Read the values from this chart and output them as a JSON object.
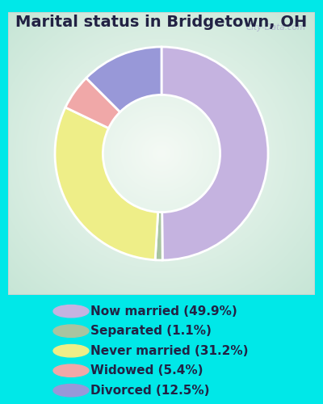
{
  "title": "Marital status in Bridgetown, OH",
  "slices": [
    {
      "label": "Now married (49.9%)",
      "value": 49.9,
      "color": "#c5b3e0"
    },
    {
      "label": "Separated (1.1%)",
      "value": 1.1,
      "color": "#a8c4a0"
    },
    {
      "label": "Never married (31.2%)",
      "value": 31.2,
      "color": "#eeee88"
    },
    {
      "label": "Widowed (5.4%)",
      "value": 5.4,
      "color": "#f0a8a8"
    },
    {
      "label": "Divorced (12.5%)",
      "value": 12.5,
      "color": "#9898d8"
    }
  ],
  "background_color": "#00e8e8",
  "chart_bg_colors": [
    "#f0f5f0",
    "#d0e8d8"
  ],
  "title_fontsize": 14,
  "legend_fontsize": 11,
  "watermark": "City-Data.com",
  "title_color": "#222244",
  "legend_text_color": "#222244"
}
